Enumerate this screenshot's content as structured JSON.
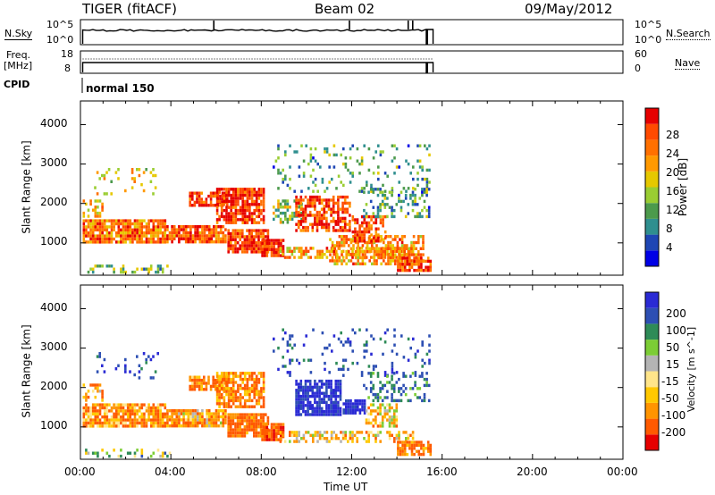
{
  "header": {
    "station": "TIGER (fitACF)",
    "beam": "Beam 02",
    "date": "09/May/2012"
  },
  "strip_panels": {
    "nsky_label": "N.Sky",
    "nsky_left_ticks": [
      "10^5",
      "10^0"
    ],
    "nsky_right_ticks": [
      "10^5",
      "10^0"
    ],
    "nsearch_label": "N.Search",
    "freq_label_line1": "Freq.",
    "freq_label_line2": "[MHz]",
    "freq_left_ticks": [
      "18",
      "8"
    ],
    "freq_right_ticks": [
      "60",
      "0"
    ],
    "nave_label": "Nave",
    "cpid_label": "CPID",
    "cpid_value": "normal 150"
  },
  "chart_data": [
    {
      "type": "heatmap",
      "name": "power",
      "xlabel": "",
      "ylabel": "Slant Range [km]",
      "xlim_hours": [
        0,
        24
      ],
      "ylim": [
        180,
        4600
      ],
      "y_ticks": [
        "1000",
        "2000",
        "3000",
        "4000"
      ],
      "data_extent_hours": [
        0,
        15.6
      ],
      "colorbar": {
        "label": "Power [dB]",
        "ticks": [
          "4",
          "8",
          "12",
          "16",
          "20",
          "24",
          "28"
        ],
        "colors": [
          "#0000e6",
          "#1e46b4",
          "#2f8f8f",
          "#4c9a4c",
          "#9acd32",
          "#e6c800",
          "#ff9900",
          "#ff7000",
          "#ff4a00",
          "#e60000"
        ]
      },
      "regions": [
        {
          "t": [
            0.1,
            3.8
          ],
          "r": [
            1000,
            1600
          ],
          "value": 24,
          "density": 0.85
        },
        {
          "t": [
            3.8,
            6.5
          ],
          "r": [
            1000,
            1450
          ],
          "value": 26,
          "density": 0.85
        },
        {
          "t": [
            6.5,
            8.4
          ],
          "r": [
            750,
            1350
          ],
          "value": 28,
          "density": 0.9
        },
        {
          "t": [
            8.0,
            9.0
          ],
          "r": [
            650,
            1100
          ],
          "value": 30,
          "density": 0.9
        },
        {
          "t": [
            8.8,
            14.8
          ],
          "r": [
            600,
            900
          ],
          "value": 22,
          "density": 0.55
        },
        {
          "t": [
            11.0,
            15.2
          ],
          "r": [
            450,
            1200
          ],
          "value": 22,
          "density": 0.6
        },
        {
          "t": [
            14.0,
            15.5
          ],
          "r": [
            300,
            650
          ],
          "value": 26,
          "density": 0.8
        },
        {
          "t": [
            0.2,
            4.0
          ],
          "r": [
            200,
            450
          ],
          "value": 12,
          "density": 0.35
        },
        {
          "t": [
            4.8,
            6.5
          ],
          "r": [
            1900,
            2300
          ],
          "value": 28,
          "density": 0.85
        },
        {
          "t": [
            6.0,
            8.2
          ],
          "r": [
            1500,
            2400
          ],
          "value": 28,
          "density": 0.8
        },
        {
          "t": [
            8.5,
            9.8
          ],
          "r": [
            1500,
            2100
          ],
          "value": 14,
          "density": 0.5
        },
        {
          "t": [
            9.5,
            12.0
          ],
          "r": [
            1300,
            2200
          ],
          "value": 27,
          "density": 0.65
        },
        {
          "t": [
            12.0,
            13.5
          ],
          "r": [
            1000,
            1700
          ],
          "value": 27,
          "density": 0.6
        },
        {
          "t": [
            0.1,
            1.0
          ],
          "r": [
            1600,
            2100
          ],
          "value": 20,
          "density": 0.45
        },
        {
          "t": [
            0.6,
            3.5
          ],
          "r": [
            2200,
            2900
          ],
          "value": 18,
          "density": 0.12
        },
        {
          "t": [
            8.5,
            15.5
          ],
          "r": [
            2300,
            3500
          ],
          "value": 10,
          "density": 0.12
        },
        {
          "t": [
            12.5,
            15.5
          ],
          "r": [
            1600,
            2400
          ],
          "value": 10,
          "density": 0.35
        }
      ]
    },
    {
      "type": "heatmap",
      "name": "velocity",
      "xlabel": "Time UT",
      "ylabel": "Slant Range [km]",
      "xlim_hours": [
        0,
        24
      ],
      "ylim": [
        180,
        4600
      ],
      "y_ticks": [
        "1000",
        "2000",
        "3000",
        "4000"
      ],
      "x_ticks": [
        "00:00",
        "04:00",
        "08:00",
        "12:00",
        "16:00",
        "20:00",
        "00:00"
      ],
      "data_extent_hours": [
        0,
        15.6
      ],
      "colorbar": {
        "label": "Velocity [m s^-1]",
        "ticks": [
          "-200",
          "-100",
          "-50",
          "-15",
          "15",
          "50",
          "100",
          "200"
        ],
        "colors": [
          "#e60000",
          "#ff5a00",
          "#ff9400",
          "#ffc800",
          "#ffe58a",
          "#b4b4b4",
          "#7ccd35",
          "#2e8b57",
          "#2d4fb3",
          "#2a2ad4"
        ]
      },
      "regions": [
        {
          "t": [
            0.1,
            3.8
          ],
          "r": [
            1000,
            1600
          ],
          "value": -80,
          "density": 0.85
        },
        {
          "t": [
            3.8,
            6.5
          ],
          "r": [
            1000,
            1450
          ],
          "value": -60,
          "density": 0.85
        },
        {
          "t": [
            6.5,
            8.4
          ],
          "r": [
            750,
            1350
          ],
          "value": -120,
          "density": 0.9
        },
        {
          "t": [
            8.0,
            9.0
          ],
          "r": [
            650,
            1100
          ],
          "value": -150,
          "density": 0.9
        },
        {
          "t": [
            8.8,
            14.8
          ],
          "r": [
            600,
            900
          ],
          "value": -40,
          "density": 0.55
        },
        {
          "t": [
            14.0,
            15.5
          ],
          "r": [
            300,
            650
          ],
          "value": -120,
          "density": 0.8
        },
        {
          "t": [
            0.2,
            4.0
          ],
          "r": [
            200,
            450
          ],
          "value": 30,
          "density": 0.3
        },
        {
          "t": [
            4.8,
            6.5
          ],
          "r": [
            1900,
            2300
          ],
          "value": -90,
          "density": 0.8
        },
        {
          "t": [
            6.0,
            8.2
          ],
          "r": [
            1500,
            2400
          ],
          "value": -100,
          "density": 0.75
        },
        {
          "t": [
            9.5,
            11.6
          ],
          "r": [
            1250,
            2200
          ],
          "value": 230,
          "density": 0.8
        },
        {
          "t": [
            11.6,
            12.6
          ],
          "r": [
            1300,
            1700
          ],
          "value": 230,
          "density": 0.85
        },
        {
          "t": [
            12.6,
            14.0
          ],
          "r": [
            1000,
            1600
          ],
          "value": -30,
          "density": 0.6
        },
        {
          "t": [
            0.1,
            1.0
          ],
          "r": [
            1600,
            2100
          ],
          "value": -60,
          "density": 0.45
        },
        {
          "t": [
            0.6,
            3.5
          ],
          "r": [
            2200,
            2900
          ],
          "value": 150,
          "density": 0.12
        },
        {
          "t": [
            8.5,
            15.5
          ],
          "r": [
            2300,
            3500
          ],
          "value": 150,
          "density": 0.12
        },
        {
          "t": [
            12.5,
            15.5
          ],
          "r": [
            1600,
            2400
          ],
          "value": 100,
          "density": 0.3
        }
      ]
    }
  ]
}
